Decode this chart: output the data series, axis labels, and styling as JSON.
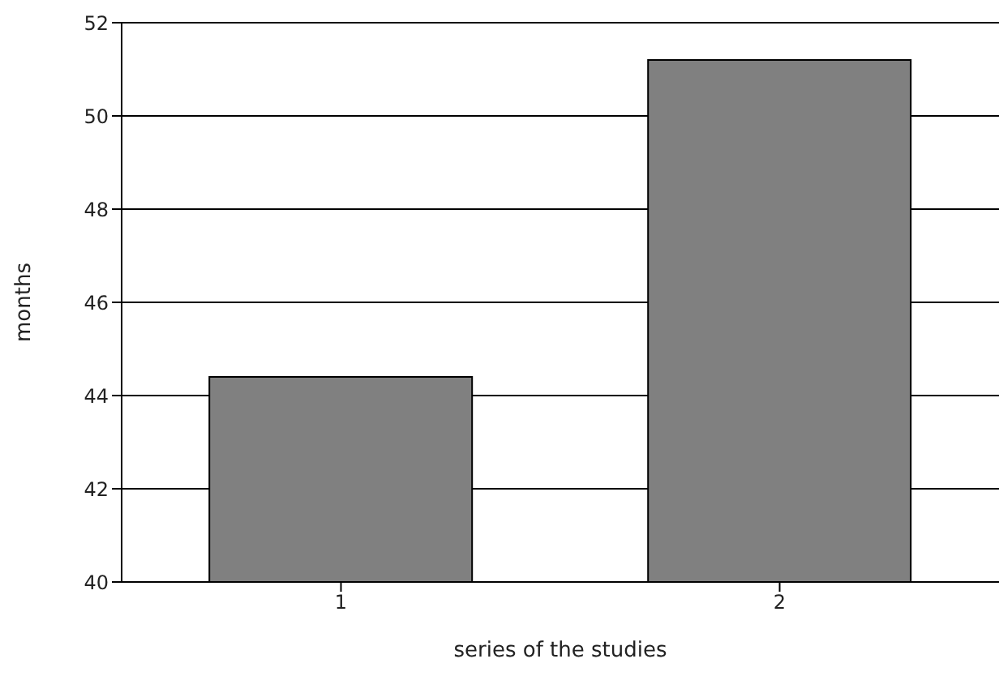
{
  "chart_data": {
    "type": "bar",
    "xlabel": "series of the studies",
    "ylabel": "months",
    "categories": [
      "1",
      "2"
    ],
    "values": [
      44.4,
      51.2
    ],
    "color": "#808080",
    "ylim": [
      40,
      52
    ],
    "yticks": [
      40,
      42,
      44,
      46,
      48,
      50,
      52
    ],
    "grid": "y"
  }
}
